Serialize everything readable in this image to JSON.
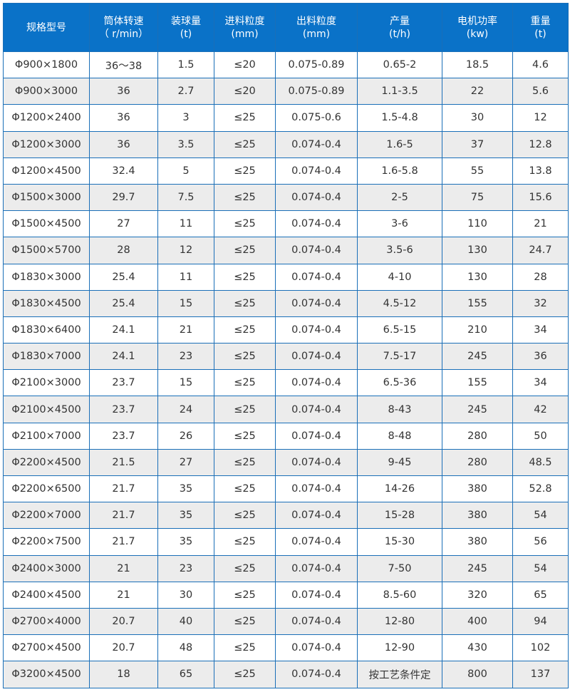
{
  "header_color": "#0a72c8",
  "columns": [
    {
      "title": "规格型号",
      "unit": ""
    },
    {
      "title": "筒体转速",
      "unit": "（ r/min）"
    },
    {
      "title": "装球量",
      "unit": "(t)"
    },
    {
      "title": "进料粒度",
      "unit": "(mm)"
    },
    {
      "title": "出料粒度",
      "unit": "(mm)"
    },
    {
      "title": "产量",
      "unit": "(t/h)"
    },
    {
      "title": "电机功率",
      "unit": "(kw)"
    },
    {
      "title": "重量",
      "unit": "(t)"
    }
  ],
  "rows": [
    [
      "Φ900×1800",
      "36～38",
      "1.5",
      "≤20",
      "0.075-0.89",
      "0.65-2",
      "18.5",
      "4.6"
    ],
    [
      "Φ900×3000",
      "36",
      "2.7",
      "≤20",
      "0.075-0.89",
      "1.1-3.5",
      "22",
      "5.6"
    ],
    [
      "Φ1200×2400",
      "36",
      "3",
      "≤25",
      "0.075-0.6",
      "1.5-4.8",
      "30",
      "12"
    ],
    [
      "Φ1200×3000",
      "36",
      "3.5",
      "≤25",
      "0.074-0.4",
      "1.6-5",
      "37",
      "12.8"
    ],
    [
      "Φ1200×4500",
      "32.4",
      "5",
      "≤25",
      "0.074-0.4",
      "1.6-5.8",
      "55",
      "13.8"
    ],
    [
      "Φ1500×3000",
      "29.7",
      "7.5",
      "≤25",
      "0.074-0.4",
      "2-5",
      "75",
      "15.6"
    ],
    [
      "Φ1500×4500",
      "27",
      "11",
      "≤25",
      "0.074-0.4",
      "3-6",
      "110",
      "21"
    ],
    [
      "Φ1500×5700",
      "28",
      "12",
      "≤25",
      "0.074-0.4",
      "3.5-6",
      "130",
      "24.7"
    ],
    [
      "Φ1830×3000",
      "25.4",
      "11",
      "≤25",
      "0.074-0.4",
      "4-10",
      "130",
      "28"
    ],
    [
      "Φ1830×4500",
      "25.4",
      "15",
      "≤25",
      "0.074-0.4",
      "4.5-12",
      "155",
      "32"
    ],
    [
      "Φ1830×6400",
      "24.1",
      "21",
      "≤25",
      "0.074-0.4",
      "6.5-15",
      "210",
      "34"
    ],
    [
      "Φ1830×7000",
      "24.1",
      "23",
      "≤25",
      "0.074-0.4",
      "7.5-17",
      "245",
      "36"
    ],
    [
      "Φ2100×3000",
      "23.7",
      "15",
      "≤25",
      "0.074-0.4",
      "6.5-36",
      "155",
      "34"
    ],
    [
      "Φ2100×4500",
      "23.7",
      "24",
      "≤25",
      "0.074-0.4",
      "8-43",
      "245",
      "42"
    ],
    [
      "Φ2100×7000",
      "23.7",
      "26",
      "≤25",
      "0.074-0.4",
      "8-48",
      "280",
      "50"
    ],
    [
      "Φ2200×4500",
      "21.5",
      "27",
      "≤25",
      "0.074-0.4",
      "9-45",
      "280",
      "48.5"
    ],
    [
      "Φ2200×6500",
      "21.7",
      "35",
      "≤25",
      "0.074-0.4",
      "14-26",
      "380",
      "52.8"
    ],
    [
      "Φ2200×7000",
      "21.7",
      "35",
      "≤25",
      "0.074-0.4",
      "15-28",
      "380",
      "54"
    ],
    [
      "Φ2200×7500",
      "21.7",
      "35",
      "≤25",
      "0.074-0.4",
      "15-30",
      "380",
      "56"
    ],
    [
      "Φ2400×3000",
      "21",
      "23",
      "≤25",
      "0.074-0.4",
      "7-50",
      "245",
      "54"
    ],
    [
      "Φ2400×4500",
      "21",
      "30",
      "≤25",
      "0.074-0.4",
      "8.5-60",
      "320",
      "65"
    ],
    [
      "Φ2700×4000",
      "20.7",
      "40",
      "≤25",
      "0.074-0.4",
      "12-80",
      "400",
      "94"
    ],
    [
      "Φ2700×4500",
      "20.7",
      "48",
      "≤25",
      "0.074-0.4",
      "12-90",
      "430",
      "102"
    ],
    [
      "Φ3200×4500",
      "18",
      "65",
      "≤25",
      "0.074-0.4",
      "按工艺条件定",
      "800",
      "137"
    ]
  ]
}
